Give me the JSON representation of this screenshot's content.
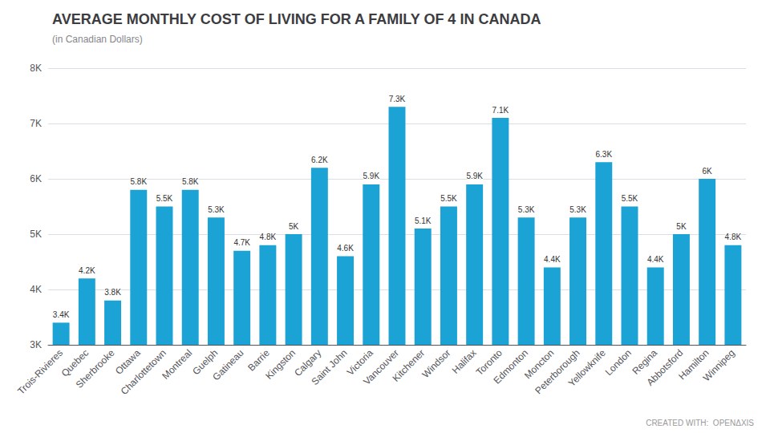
{
  "chart_data": {
    "type": "bar",
    "title": "AVERAGE MONTHLY COST OF LIVING FOR A FAMILY OF 4 IN CANADA",
    "subtitle": "(in Canadian Dollars)",
    "annotations": [
      "CREATED WITH:  OPENΔXIS"
    ],
    "categories": [
      "Trois-Rivieres",
      "Quebec",
      "Sherbrooke",
      "Ottawa",
      "Charlottetown",
      "Montreal",
      "Guelph",
      "Gatineau",
      "Barrie",
      "Kingston",
      "Calgary",
      "Saint John",
      "Victoria",
      "Vancouver",
      "Kitchener",
      "Windsor",
      "Halifax",
      "Toronto",
      "Edmonton",
      "Moncton",
      "Peterborough",
      "Yellowknife",
      "London",
      "Regina",
      "Abbotsford",
      "Hamilton",
      "Winnipeg"
    ],
    "values": [
      3400,
      4200,
      3800,
      5800,
      5500,
      5800,
      5300,
      4700,
      4800,
      5000,
      6200,
      4600,
      5900,
      7300,
      5100,
      5500,
      5900,
      7100,
      5300,
      4400,
      5300,
      6300,
      5500,
      4400,
      5000,
      6000,
      4800
    ],
    "value_labels": [
      "3.4K",
      "4.2K",
      "3.8K",
      "5.8K",
      "5.5K",
      "5.8K",
      "5.3K",
      "4.7K",
      "4.8K",
      "5K",
      "6.2K",
      "4.6K",
      "5.9K",
      "7.3K",
      "5.1K",
      "5.5K",
      "5.9K",
      "7.1K",
      "5.3K",
      "4.4K",
      "5.3K",
      "6.3K",
      "5.5K",
      "4.4K",
      "5K",
      "6K",
      "4.8K"
    ],
    "data_labels": true,
    "color": "#1aa3d4",
    "ylim": [
      3000,
      8000
    ],
    "yticks": [
      {
        "value": 3000,
        "label": "3K"
      },
      {
        "value": 4000,
        "label": "4K"
      },
      {
        "value": 5000,
        "label": "5K"
      },
      {
        "value": 6000,
        "label": "6K"
      },
      {
        "value": 7000,
        "label": "7K"
      },
      {
        "value": 8000,
        "label": "8K"
      }
    ],
    "grid": true
  }
}
